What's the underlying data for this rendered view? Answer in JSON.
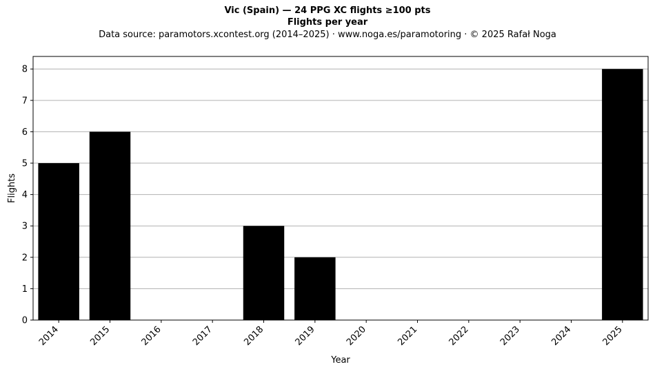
{
  "chart_data": {
    "type": "bar",
    "title": "Vic (Spain)  —  24 PPG XC flights ≥100 pts",
    "subtitle": "Flights per year",
    "source_line": "Data source: paramotors.xcontest.org (2014–2025)  ·  www.noga.es/paramotoring  ·  © 2025 Rafał Noga",
    "xlabel": "Year",
    "ylabel": "Flights",
    "categories": [
      "2014",
      "2015",
      "2016",
      "2017",
      "2018",
      "2019",
      "2020",
      "2021",
      "2022",
      "2023",
      "2024",
      "2025"
    ],
    "values": [
      5,
      6,
      0,
      0,
      3,
      2,
      0,
      0,
      0,
      0,
      0,
      8
    ],
    "ylim": [
      0,
      8.4
    ],
    "yticks": [
      0,
      1,
      2,
      3,
      4,
      5,
      6,
      7,
      8
    ],
    "grid": "horizontal",
    "bar_color": "#000000",
    "grid_color": "#b0b0b0"
  }
}
